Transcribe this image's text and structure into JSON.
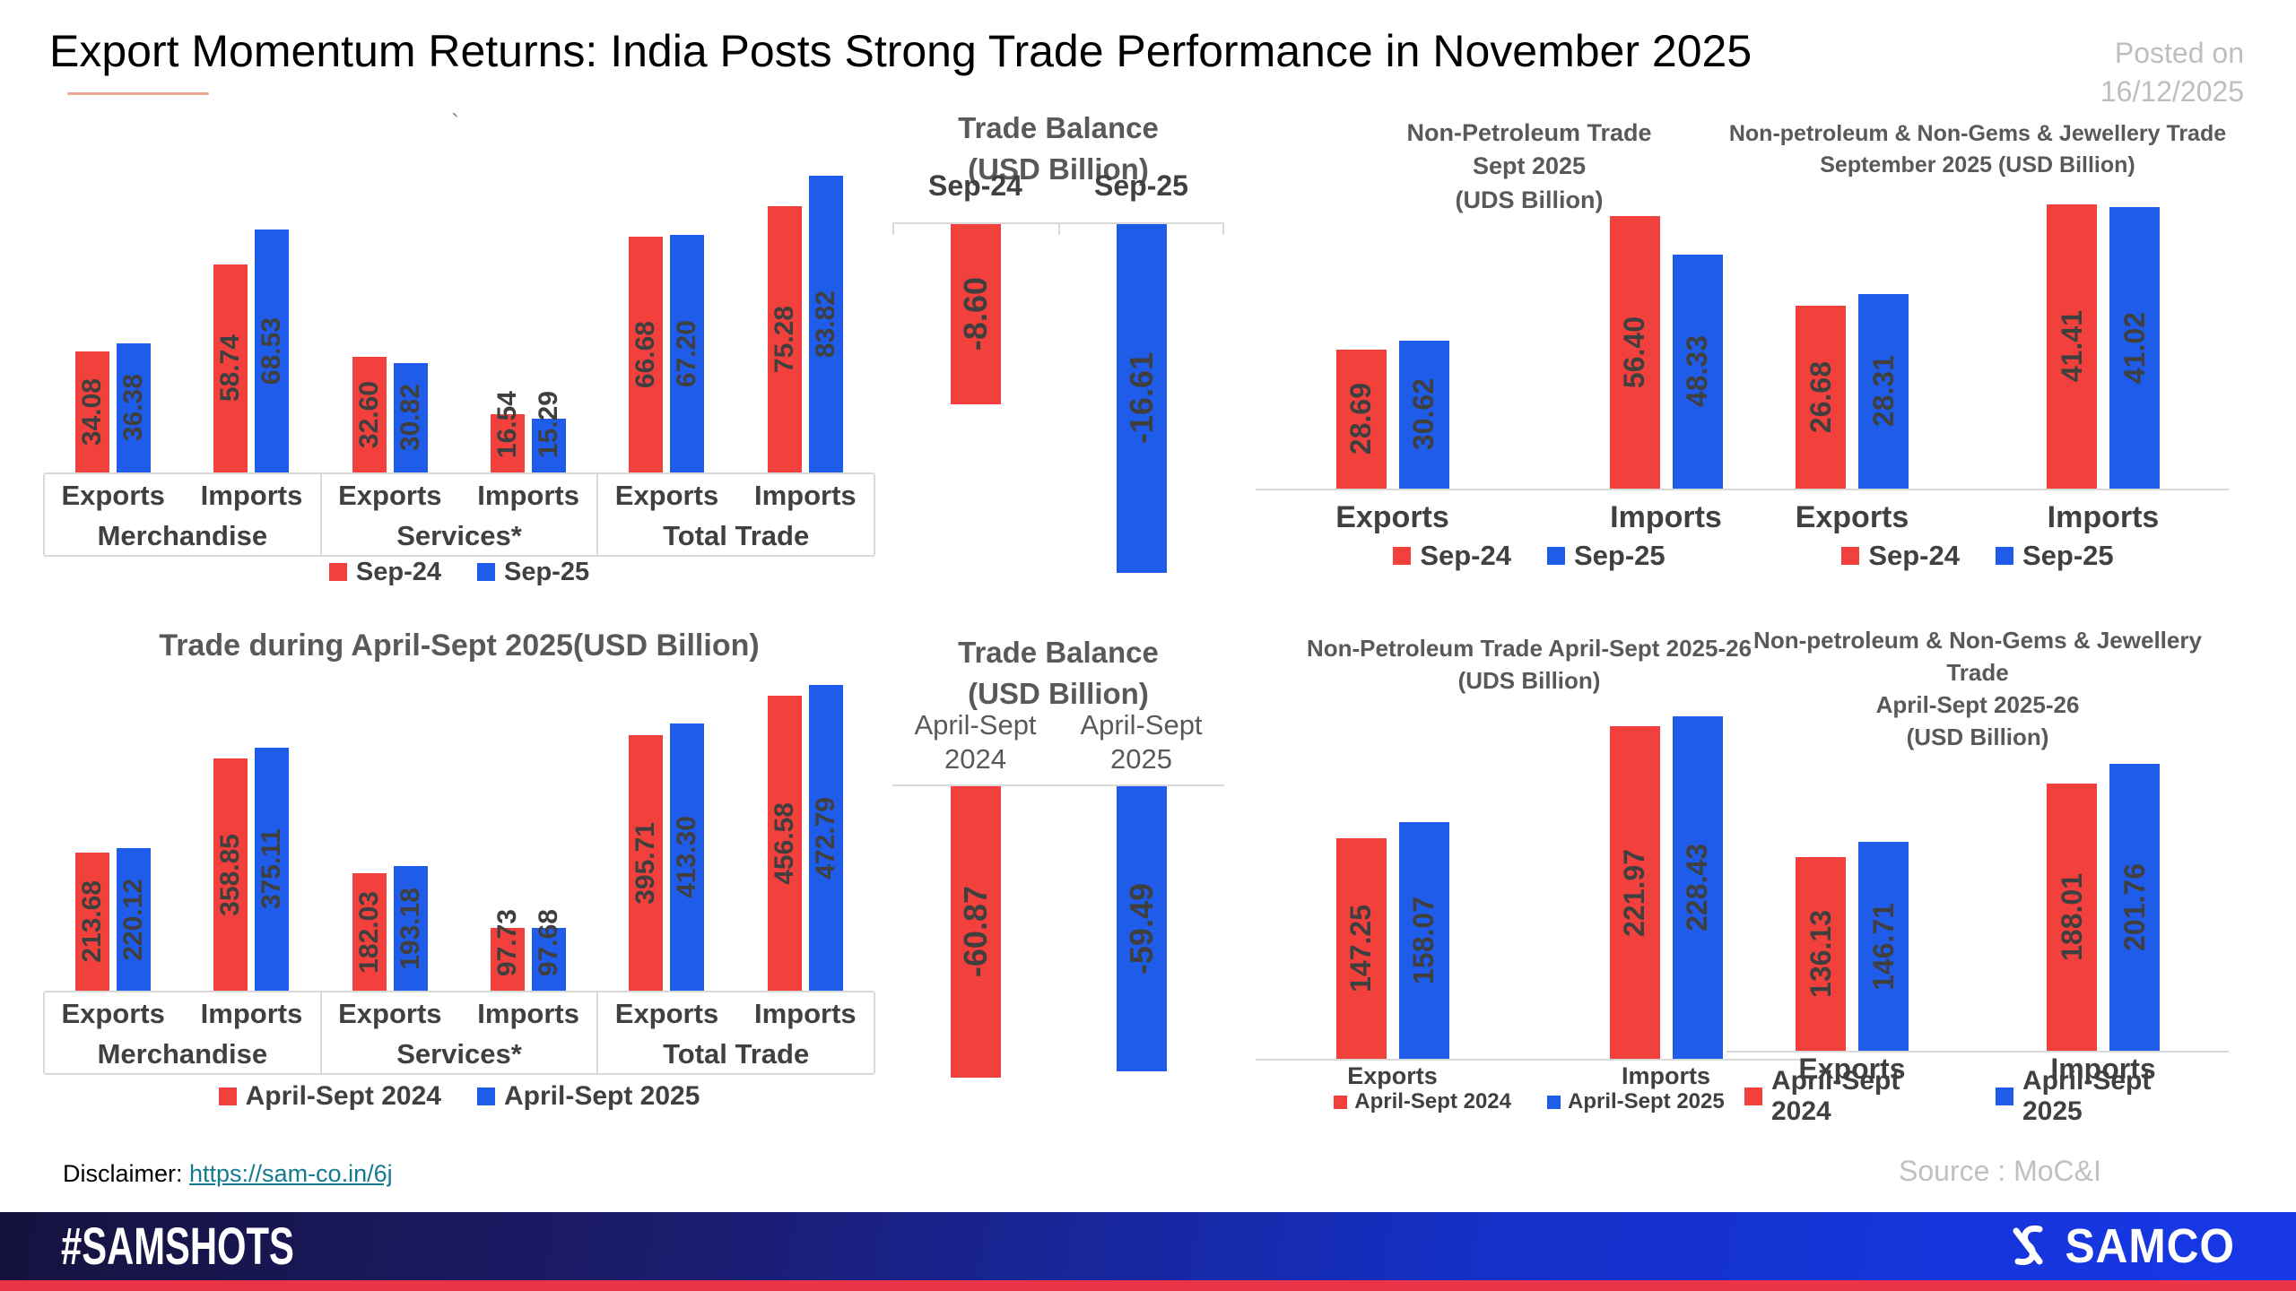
{
  "header": {
    "title": "Export Momentum Returns: India Posts Strong Trade Performance in November 2025",
    "posted_on_line1": "Posted on",
    "posted_on_line2": "16/12/2025"
  },
  "colors": {
    "series1": "#F2413D",
    "series2": "#1E5CE9",
    "bar_label_text": "#3F3F3F",
    "axis_line": "#D9D9D9",
    "chart_heading": "#595959",
    "category_text": "#404040",
    "muted_text": "#BEBEBE",
    "link": "#147A90",
    "footer_gradient_start": "#16123E",
    "footer_gradient_end": "#1838E8",
    "bottom_strip": "#EC3448"
  },
  "chart_data": [
    {
      "id": "monthly-trade",
      "type": "bar",
      "subtype": "grouped",
      "title": "",
      "unit": "USD Billion",
      "group_labels": [
        "Merchandise",
        "Services*",
        "Total Trade"
      ],
      "categories": [
        "Exports",
        "Imports",
        "Exports",
        "Imports",
        "Exports",
        "Imports"
      ],
      "series": [
        {
          "name": "Sep-24",
          "values": [
            34.08,
            58.74,
            32.6,
            16.54,
            66.68,
            75.28
          ]
        },
        {
          "name": "Sep-25",
          "values": [
            36.38,
            68.53,
            30.82,
            15.29,
            67.2,
            83.82
          ]
        }
      ],
      "legend_position": "bottom",
      "grid": false
    },
    {
      "id": "trade-balance-monthly",
      "type": "bar",
      "subtype": "negative",
      "title_lines": [
        "Trade Balance",
        "(USD Billion)"
      ],
      "categories": [
        "Sep-24",
        "Sep-25"
      ],
      "values": [
        -8.6,
        -16.61
      ],
      "ylim": [
        -16.61,
        0
      ],
      "grid": false
    },
    {
      "id": "non-petroleum-monthly",
      "type": "bar",
      "subtype": "pair",
      "title_lines": [
        "Non-Petroleum Trade",
        "Sept 2025",
        "(UDS Billion)"
      ],
      "categories": [
        "Exports",
        "Imports"
      ],
      "series": [
        {
          "name": "Sep-24",
          "values": [
            28.69,
            56.4
          ]
        },
        {
          "name": "Sep-25",
          "values": [
            30.62,
            48.33
          ]
        }
      ],
      "legend_position": "bottom",
      "grid": false
    },
    {
      "id": "non-petroleum-non-gems-monthly",
      "type": "bar",
      "subtype": "pair",
      "title_lines": [
        "Non-petroleum & Non-Gems & Jewellery Trade",
        "September 2025 (USD Billion)"
      ],
      "categories": [
        "Exports",
        "Imports"
      ],
      "series": [
        {
          "name": "Sep-24",
          "values": [
            26.68,
            41.41
          ]
        },
        {
          "name": "Sep-25",
          "values": [
            28.31,
            41.02
          ]
        }
      ],
      "legend_position": "bottom",
      "grid": false
    },
    {
      "id": "april-sept-trade",
      "type": "bar",
      "subtype": "grouped",
      "title": "Trade during April-Sept 2025(USD Billion)",
      "unit": "USD Billion",
      "group_labels": [
        "Merchandise",
        "Services*",
        "Total Trade"
      ],
      "categories": [
        "Exports",
        "Imports",
        "Exports",
        "Imports",
        "Exports",
        "Imports"
      ],
      "series": [
        {
          "name": "April-Sept 2024",
          "values": [
            213.68,
            358.85,
            182.03,
            97.73,
            395.71,
            456.58
          ]
        },
        {
          "name": "April-Sept 2025",
          "values": [
            220.12,
            375.11,
            193.18,
            97.68,
            413.3,
            472.79
          ]
        }
      ],
      "legend_position": "bottom",
      "grid": false
    },
    {
      "id": "trade-balance-april-sept",
      "type": "bar",
      "subtype": "negative",
      "title_lines": [
        "Trade Balance",
        "(USD Billion)"
      ],
      "categories": [
        "April-Sept 2024",
        "April-Sept 2025"
      ],
      "values": [
        -60.87,
        -59.49
      ],
      "ylim": [
        -60.87,
        0
      ],
      "grid": false
    },
    {
      "id": "non-petroleum-april-sept",
      "type": "bar",
      "subtype": "pair",
      "title_lines": [
        "Non-Petroleum Trade April-Sept 2025-26",
        "(UDS Billion)"
      ],
      "categories": [
        "Exports",
        "Imports"
      ],
      "series": [
        {
          "name": "April-Sept 2024",
          "values": [
            147.25,
            221.97
          ]
        },
        {
          "name": "April-Sept 2025",
          "values": [
            158.07,
            228.43
          ]
        }
      ],
      "legend_position": "bottom",
      "grid": false
    },
    {
      "id": "non-petroleum-non-gems-april-sept",
      "type": "bar",
      "subtype": "pair",
      "title_lines": [
        "Non-petroleum & Non-Gems & Jewellery Trade",
        "April-Sept 2025-26",
        "(USD Billion)"
      ],
      "categories": [
        "Exports",
        "Imports"
      ],
      "series": [
        {
          "name": "April-Sept 2024",
          "values": [
            136.13,
            188.01
          ]
        },
        {
          "name": "April-Sept 2025",
          "values": [
            146.71,
            201.76
          ]
        }
      ],
      "legend_position": "bottom",
      "grid": false
    }
  ],
  "disclaimer": {
    "label": "Disclaimer: ",
    "link": "https://sam-co.in/6j"
  },
  "source": "Source : MoC&I",
  "footer": {
    "hashtag": "#SAMSHOTS",
    "brand": "SAMCO"
  }
}
